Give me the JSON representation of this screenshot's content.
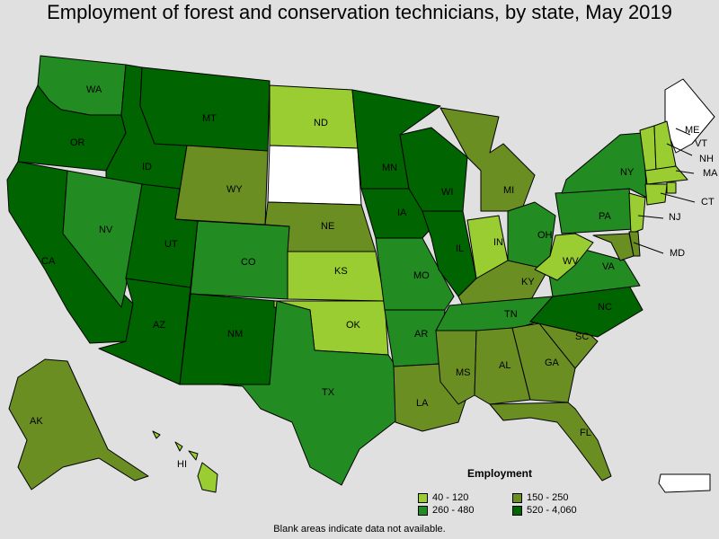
{
  "title": "Employment of forest and conservation technicians, by state, May 2019",
  "footnote": "Blank areas indicate data not available.",
  "legend": {
    "title": "Employment",
    "items": [
      {
        "range": "40 - 120",
        "color": "#9acd32"
      },
      {
        "range": "150 - 250",
        "color": "#6b8e23"
      },
      {
        "range": "260 - 480",
        "color": "#228b22"
      },
      {
        "range": "520 - 4,060",
        "color": "#006400"
      }
    ]
  },
  "state_colors": {
    "no_data": "#ffffff",
    "c1": "#9acd32",
    "c2": "#6b8e23",
    "c3": "#228b22",
    "c4": "#006400"
  },
  "states": {
    "WA": "c3",
    "OR": "c4",
    "CA": "c4",
    "ID": "c4",
    "NV": "c3",
    "MT": "c4",
    "WY": "c2",
    "UT": "c4",
    "AZ": "c4",
    "CO": "c3",
    "NM": "c4",
    "ND": "c1",
    "SD": "no_data",
    "NE": "c2",
    "KS": "c1",
    "OK": "c1",
    "TX": "c3",
    "MN": "c4",
    "IA": "c4",
    "MO": "c3",
    "AR": "c3",
    "LA": "c2",
    "WI": "c4",
    "IL": "c4",
    "MI": "c2",
    "IN": "c1",
    "OH": "c3",
    "KY": "c2",
    "TN": "c3",
    "MS": "c2",
    "AL": "c2",
    "GA": "c2",
    "FL": "c2",
    "SC": "c2",
    "NC": "c4",
    "VA": "c3",
    "WV": "c1",
    "PA": "c3",
    "NY": "c3",
    "ME": "no_data",
    "VT": "c1",
    "NH": "c1",
    "MA": "c1",
    "CT": "c1",
    "NJ": "c1",
    "MD": "c2",
    "DE": "c2",
    "RI": "c1",
    "AK": "c2",
    "HI": "c1",
    "PR": "no_data"
  },
  "labels": [
    "WA",
    "OR",
    "CA",
    "ID",
    "NV",
    "MT",
    "WY",
    "UT",
    "AZ",
    "CO",
    "NM",
    "ND",
    "NE",
    "KS",
    "OK",
    "TX",
    "MN",
    "IA",
    "MO",
    "AR",
    "LA",
    "WI",
    "IL",
    "MI",
    "IN",
    "OH",
    "KY",
    "TN",
    "MS",
    "AL",
    "GA",
    "FL",
    "SC",
    "NC",
    "VA",
    "WV",
    "PA",
    "NY",
    "ME",
    "VT",
    "NH",
    "MA",
    "CT",
    "NJ",
    "MD",
    "AK",
    "HI"
  ]
}
